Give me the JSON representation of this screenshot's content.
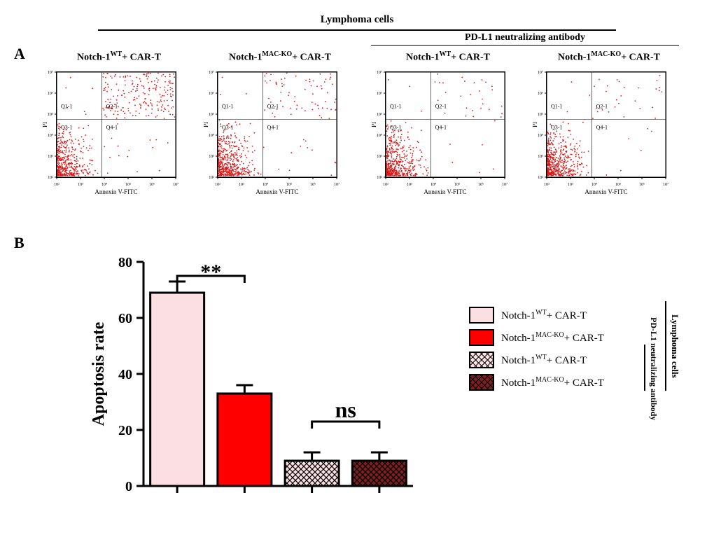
{
  "figure": {
    "top_title": "Lymphoma cells",
    "panelA": {
      "letter": "A",
      "antibody_group_label": "PD-L1 neutralizing antibody",
      "conditions": [
        {
          "label_prefix": "Notch-1",
          "super": "WT",
          "label_suffix": "+ CAR-T"
        },
        {
          "label_prefix": "Notch-1",
          "super": "MAC-KO",
          "label_suffix": "+ CAR-T"
        },
        {
          "label_prefix": "Notch-1",
          "super": "WT",
          "label_suffix": "+ CAR-T"
        },
        {
          "label_prefix": "Notch-1",
          "super": "MAC-KO",
          "label_suffix": "+ CAR-T"
        }
      ],
      "facs": {
        "ylab": "PI",
        "xlab": "Annexin V-FITC",
        "quadrants": [
          "Q1-1",
          "Q2-1",
          "Q3-1",
          "Q4-1"
        ],
        "tick_labels": [
          "10²",
          "10³",
          "10⁴",
          "10⁵",
          "10⁶",
          "10⁷"
        ],
        "dot_color": "#d91c1c",
        "plots": [
          {
            "q2_density": 0.3,
            "q3_density": 0.45,
            "q1_density": 0.02,
            "q4_density": 0.05,
            "seed": 11
          },
          {
            "q2_density": 0.1,
            "q3_density": 0.55,
            "q1_density": 0.01,
            "q4_density": 0.04,
            "seed": 22
          },
          {
            "q2_density": 0.04,
            "q3_density": 0.55,
            "q1_density": 0.01,
            "q4_density": 0.02,
            "seed": 33
          },
          {
            "q2_density": 0.04,
            "q3_density": 0.55,
            "q1_density": 0.01,
            "q4_density": 0.02,
            "seed": 44
          }
        ]
      }
    },
    "panelB": {
      "letter": "B",
      "chart": {
        "type": "bar",
        "ylabel": "Apoptosis rate",
        "ylabel_fontsize": 24,
        "ylim": [
          0,
          80
        ],
        "ytick_step": 20,
        "axis_color": "#000000",
        "axis_width": 3,
        "tick_fontsize": 20,
        "background_color": "#ffffff",
        "bar_border_width": 3,
        "bars": [
          {
            "value": 69,
            "error": 4,
            "fill": "#fbdfe3",
            "pattern": "none"
          },
          {
            "value": 33,
            "error": 3,
            "fill": "#fe0000",
            "pattern": "none"
          },
          {
            "value": 9,
            "error": 3,
            "fill": "#fbdfe3",
            "pattern": "hatch"
          },
          {
            "value": 9,
            "error": 3,
            "fill": "#7d1f1f",
            "pattern": "hatch"
          }
        ],
        "annotations": [
          {
            "from_bar": 0,
            "to_bar": 1,
            "text": "**",
            "text_fontsize": 30,
            "y": 75
          },
          {
            "from_bar": 2,
            "to_bar": 3,
            "text": "ns",
            "text_fontsize": 32,
            "y": 23,
            "is_ns": true
          }
        ]
      },
      "legend": {
        "sidebar_outer": "Lymphoma cells",
        "sidebar_inner": "PD-L1 neutralizing antibody",
        "items": [
          {
            "fill": "#fbdfe3",
            "pattern": "none",
            "label_prefix": "Notch-1",
            "super": "WT",
            "label_suffix": "+ CAR-T"
          },
          {
            "fill": "#fe0000",
            "pattern": "none",
            "label_prefix": "Notch-1",
            "super": "MAC-KO",
            "label_suffix": "+ CAR-T"
          },
          {
            "fill": "#fbdfe3",
            "pattern": "hatch",
            "label_prefix": "Notch-1",
            "super": "WT",
            "label_suffix": "+ CAR-T"
          },
          {
            "fill": "#7d1f1f",
            "pattern": "hatch",
            "label_prefix": "Notch-1",
            "super": "MAC-KO",
            "label_suffix": "+ CAR-T"
          }
        ]
      }
    }
  }
}
